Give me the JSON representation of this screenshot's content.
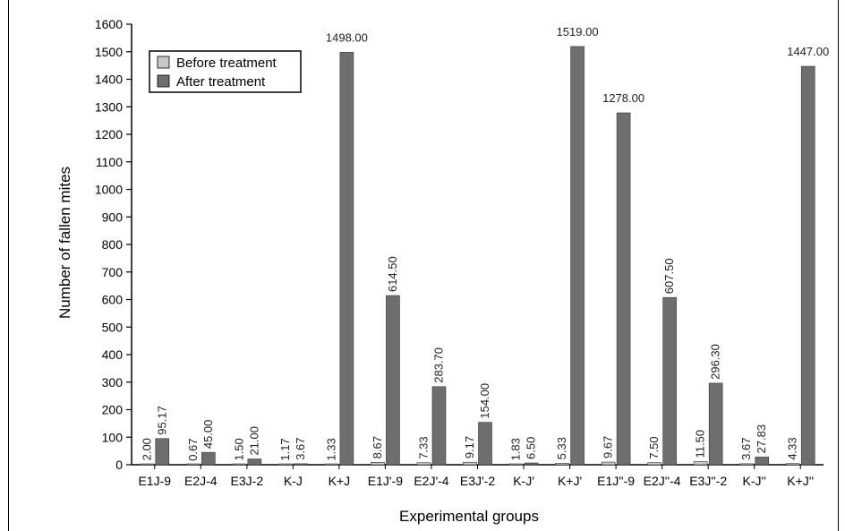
{
  "chart_data": {
    "type": "bar",
    "title": "",
    "xlabel": "Experimental groups",
    "ylabel": "Number of fallen mites",
    "ylim": [
      0,
      1600
    ],
    "yticks": [
      0,
      100,
      200,
      300,
      400,
      500,
      600,
      700,
      800,
      900,
      1000,
      1100,
      1200,
      1300,
      1400,
      1500,
      1600
    ],
    "categories": [
      "E1J-9",
      "E2J-4",
      "E3J-2",
      "K-J",
      "K+J",
      "E1J'-9",
      "E2J'-4",
      "E3J'-2",
      "K-J'",
      "K+J'",
      "E1J''-9",
      "E2J''-4",
      "E3J''-2",
      "K-J''",
      "K+J''"
    ],
    "series": [
      {
        "name": "Before treatment",
        "color": "#c8c8c8",
        "values": [
          2.0,
          0.67,
          1.5,
          1.17,
          1.33,
          8.67,
          7.33,
          9.17,
          1.83,
          5.33,
          9.67,
          7.5,
          11.5,
          3.67,
          4.33
        ],
        "labels": [
          "2.00",
          "0.67",
          "1.50",
          "1.17",
          "1.33",
          "8.67",
          "7.33",
          "9.17",
          "1.83",
          "5.33",
          "9.67",
          "7.50",
          "11.50",
          "3.67",
          "4.33"
        ]
      },
      {
        "name": "After treatment",
        "color": "#6e6e6e",
        "values": [
          95.17,
          45.0,
          21.0,
          3.67,
          1498.0,
          614.5,
          283.7,
          154.0,
          6.5,
          1519.0,
          1278.0,
          607.5,
          296.3,
          27.83,
          1447.0
        ],
        "labels": [
          "95.17",
          "45.00",
          "21.00",
          "3.67",
          "1498.00",
          "614.50",
          "283.70",
          "154.00",
          "6.50",
          "1519.00",
          "1278.00",
          "607.50",
          "296.30",
          "27.83",
          "1447.00"
        ]
      }
    ],
    "legend_position": "top-left",
    "grid": false
  }
}
